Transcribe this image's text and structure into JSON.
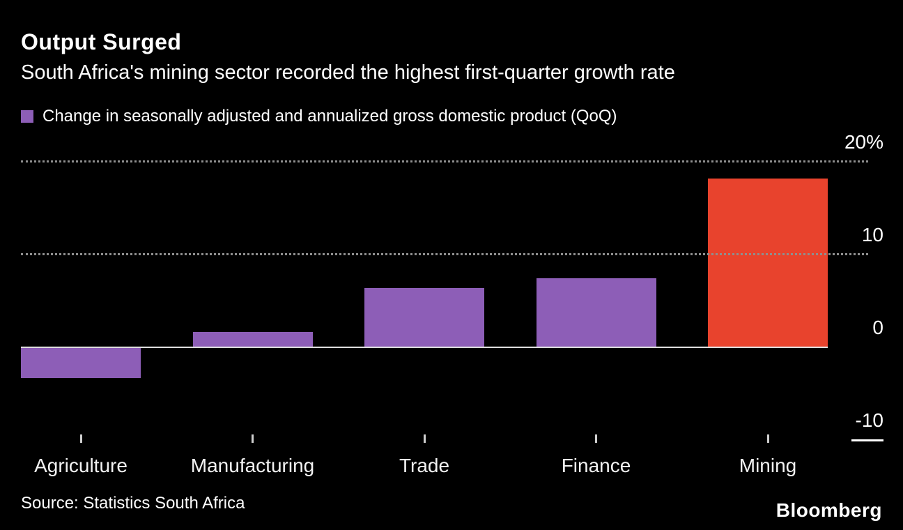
{
  "chart_data": {
    "type": "bar",
    "title": "Output Surged",
    "subtitle": "South Africa's mining sector recorded the highest first-quarter growth rate",
    "legend": "Change in seasonally adjusted and annualized gross domestic product (QoQ)",
    "legend_position": "top-left",
    "categories": [
      "Agriculture",
      "Manufacturing",
      "Trade",
      "Finance",
      "Mining"
    ],
    "values": [
      -3.2,
      1.6,
      6.3,
      7.4,
      18.1
    ],
    "colors": [
      "#8d5eb7",
      "#8d5eb7",
      "#8d5eb7",
      "#8d5eb7",
      "#e8432d"
    ],
    "unit": "%",
    "ylim": [
      -10,
      20
    ],
    "yticks": [
      {
        "label": "20%",
        "value": 20
      },
      {
        "label": "10",
        "value": 10
      },
      {
        "label": "0",
        "value": 0
      },
      {
        "label": "-10",
        "value": -10
      }
    ],
    "gridlines": {
      "dotted_at": [
        20,
        10
      ],
      "zero_line": true,
      "neg_axis_segment_at": -10
    },
    "xlabel": "",
    "ylabel": "",
    "source": "Source: Statistics South Africa"
  },
  "brand": {
    "logo_text": "Bloomberg"
  }
}
